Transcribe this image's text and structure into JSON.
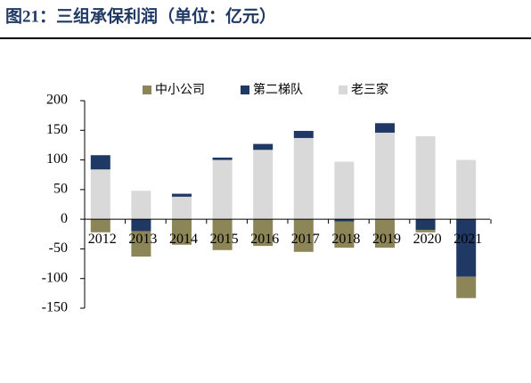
{
  "chart_data": {
    "type": "bar",
    "stacked": true,
    "title": "图21：三组承保利润（单位：亿元）",
    "categories": [
      "2012",
      "2013",
      "2014",
      "2015",
      "2016",
      "2017",
      "2018",
      "2019",
      "2020",
      "2021"
    ],
    "series": [
      {
        "name": "中小公司",
        "color": "#8c8558",
        "values": [
          -22,
          -43,
          -43,
          -52,
          -45,
          -55,
          -44,
          -48,
          -4,
          -36
        ]
      },
      {
        "name": "第二梯队",
        "color": "#1f3864",
        "values": [
          24,
          -20,
          5,
          4,
          10,
          12,
          -4,
          16,
          -18,
          -97
        ]
      },
      {
        "name": "老三家",
        "color": "#d9d9d9",
        "values": [
          84,
          48,
          38,
          100,
          117,
          137,
          97,
          146,
          140,
          100
        ]
      }
    ],
    "ylim": [
      -150,
      200
    ],
    "yticks": [
      200,
      150,
      100,
      50,
      0,
      -50,
      -100,
      -150
    ],
    "legend": "top"
  }
}
